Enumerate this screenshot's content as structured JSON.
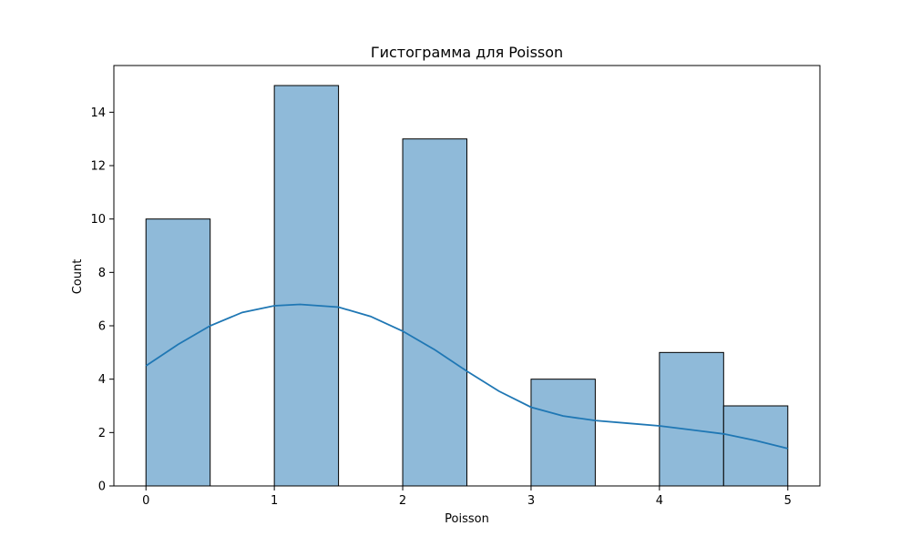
{
  "chart_data": {
    "type": "bar",
    "title": "Гистограмма для Poisson",
    "xlabel": "Poisson",
    "ylabel": "Count",
    "xlim": [
      -0.25,
      5.25
    ],
    "ylim": [
      0,
      15.75
    ],
    "xticks": [
      0,
      1,
      2,
      3,
      4,
      5
    ],
    "yticks": [
      0,
      2,
      4,
      6,
      8,
      10,
      12,
      14
    ],
    "grid": false,
    "colors": {
      "bar_fill": "#8fbad9",
      "bar_edge": "#000000",
      "kde_line": "#1f77b4"
    },
    "bins": [
      {
        "x0": 0.0,
        "x1": 0.5,
        "count": 10
      },
      {
        "x0": 0.5,
        "x1": 1.0,
        "count": 0
      },
      {
        "x0": 1.0,
        "x1": 1.5,
        "count": 15
      },
      {
        "x0": 1.5,
        "x1": 2.0,
        "count": 0
      },
      {
        "x0": 2.0,
        "x1": 2.5,
        "count": 13
      },
      {
        "x0": 2.5,
        "x1": 3.0,
        "count": 0
      },
      {
        "x0": 3.0,
        "x1": 3.5,
        "count": 4
      },
      {
        "x0": 3.5,
        "x1": 4.0,
        "count": 0
      },
      {
        "x0": 4.0,
        "x1": 4.5,
        "count": 5
      },
      {
        "x0": 4.5,
        "x1": 5.0,
        "count": 3
      }
    ],
    "kde": {
      "x": [
        0.0,
        0.25,
        0.5,
        0.75,
        1.0,
        1.2,
        1.5,
        1.75,
        2.0,
        2.25,
        2.5,
        2.75,
        3.0,
        3.25,
        3.5,
        3.75,
        4.0,
        4.25,
        4.5,
        4.75,
        5.0
      ],
      "y": [
        4.5,
        5.3,
        6.0,
        6.5,
        6.75,
        6.8,
        6.7,
        6.35,
        5.8,
        5.1,
        4.3,
        3.55,
        2.95,
        2.62,
        2.45,
        2.35,
        2.25,
        2.1,
        1.95,
        1.7,
        1.4
      ]
    }
  }
}
